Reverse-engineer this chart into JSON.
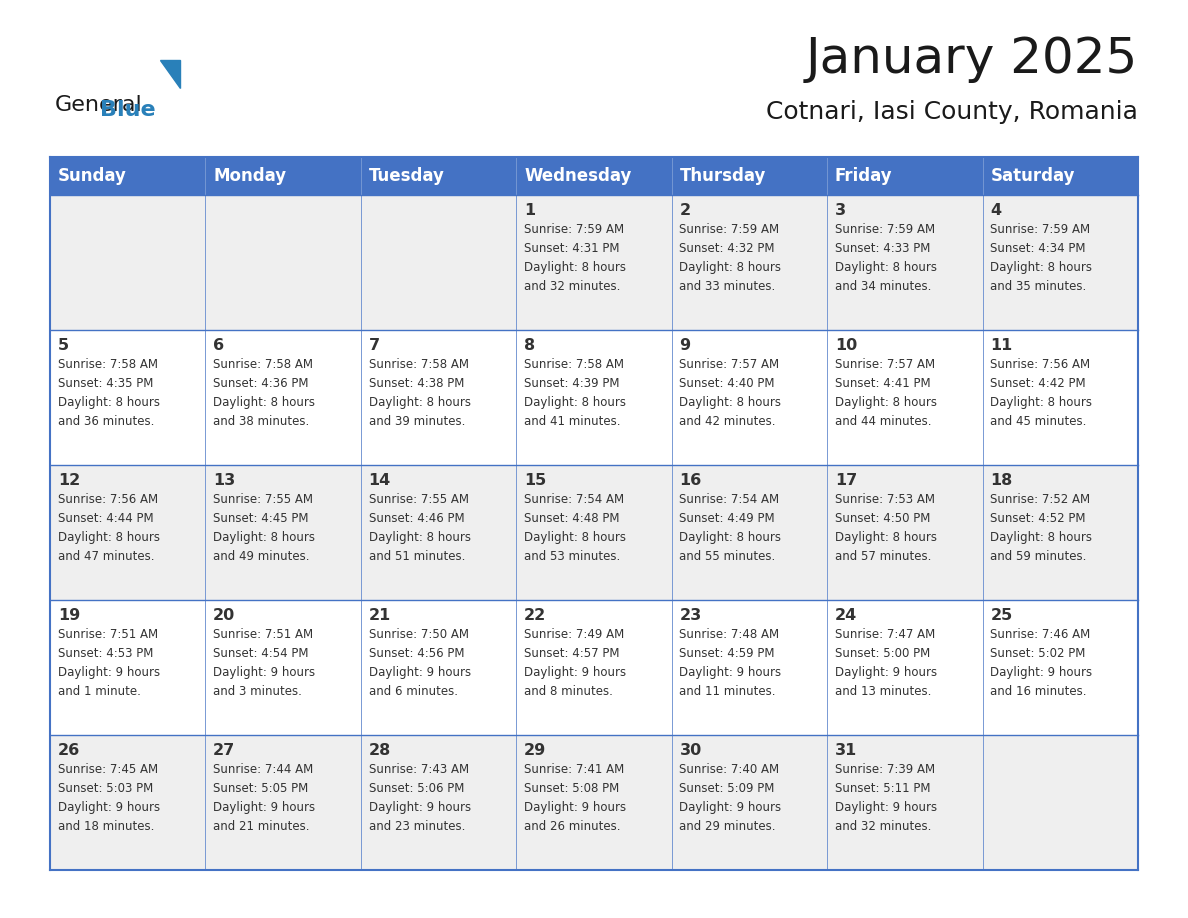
{
  "title": "January 2025",
  "subtitle": "Cotnari, Iasi County, Romania",
  "header_bg": "#4472c4",
  "header_text_color": "#ffffff",
  "cell_bg_even": "#efefef",
  "cell_bg_odd": "#ffffff",
  "border_color": "#4472c4",
  "text_color": "#333333",
  "days_of_week": [
    "Sunday",
    "Monday",
    "Tuesday",
    "Wednesday",
    "Thursday",
    "Friday",
    "Saturday"
  ],
  "weeks": [
    [
      {
        "date": "",
        "sunrise": "",
        "sunset": "",
        "daylight": ""
      },
      {
        "date": "",
        "sunrise": "",
        "sunset": "",
        "daylight": ""
      },
      {
        "date": "",
        "sunrise": "",
        "sunset": "",
        "daylight": ""
      },
      {
        "date": "1",
        "sunrise": "7:59 AM",
        "sunset": "4:31 PM",
        "daylight": "8 hours and 32 minutes."
      },
      {
        "date": "2",
        "sunrise": "7:59 AM",
        "sunset": "4:32 PM",
        "daylight": "8 hours and 33 minutes."
      },
      {
        "date": "3",
        "sunrise": "7:59 AM",
        "sunset": "4:33 PM",
        "daylight": "8 hours and 34 minutes."
      },
      {
        "date": "4",
        "sunrise": "7:59 AM",
        "sunset": "4:34 PM",
        "daylight": "8 hours and 35 minutes."
      }
    ],
    [
      {
        "date": "5",
        "sunrise": "7:58 AM",
        "sunset": "4:35 PM",
        "daylight": "8 hours and 36 minutes."
      },
      {
        "date": "6",
        "sunrise": "7:58 AM",
        "sunset": "4:36 PM",
        "daylight": "8 hours and 38 minutes."
      },
      {
        "date": "7",
        "sunrise": "7:58 AM",
        "sunset": "4:38 PM",
        "daylight": "8 hours and 39 minutes."
      },
      {
        "date": "8",
        "sunrise": "7:58 AM",
        "sunset": "4:39 PM",
        "daylight": "8 hours and 41 minutes."
      },
      {
        "date": "9",
        "sunrise": "7:57 AM",
        "sunset": "4:40 PM",
        "daylight": "8 hours and 42 minutes."
      },
      {
        "date": "10",
        "sunrise": "7:57 AM",
        "sunset": "4:41 PM",
        "daylight": "8 hours and 44 minutes."
      },
      {
        "date": "11",
        "sunrise": "7:56 AM",
        "sunset": "4:42 PM",
        "daylight": "8 hours and 45 minutes."
      }
    ],
    [
      {
        "date": "12",
        "sunrise": "7:56 AM",
        "sunset": "4:44 PM",
        "daylight": "8 hours and 47 minutes."
      },
      {
        "date": "13",
        "sunrise": "7:55 AM",
        "sunset": "4:45 PM",
        "daylight": "8 hours and 49 minutes."
      },
      {
        "date": "14",
        "sunrise": "7:55 AM",
        "sunset": "4:46 PM",
        "daylight": "8 hours and 51 minutes."
      },
      {
        "date": "15",
        "sunrise": "7:54 AM",
        "sunset": "4:48 PM",
        "daylight": "8 hours and 53 minutes."
      },
      {
        "date": "16",
        "sunrise": "7:54 AM",
        "sunset": "4:49 PM",
        "daylight": "8 hours and 55 minutes."
      },
      {
        "date": "17",
        "sunrise": "7:53 AM",
        "sunset": "4:50 PM",
        "daylight": "8 hours and 57 minutes."
      },
      {
        "date": "18",
        "sunrise": "7:52 AM",
        "sunset": "4:52 PM",
        "daylight": "8 hours and 59 minutes."
      }
    ],
    [
      {
        "date": "19",
        "sunrise": "7:51 AM",
        "sunset": "4:53 PM",
        "daylight": "9 hours and 1 minute."
      },
      {
        "date": "20",
        "sunrise": "7:51 AM",
        "sunset": "4:54 PM",
        "daylight": "9 hours and 3 minutes."
      },
      {
        "date": "21",
        "sunrise": "7:50 AM",
        "sunset": "4:56 PM",
        "daylight": "9 hours and 6 minutes."
      },
      {
        "date": "22",
        "sunrise": "7:49 AM",
        "sunset": "4:57 PM",
        "daylight": "9 hours and 8 minutes."
      },
      {
        "date": "23",
        "sunrise": "7:48 AM",
        "sunset": "4:59 PM",
        "daylight": "9 hours and 11 minutes."
      },
      {
        "date": "24",
        "sunrise": "7:47 AM",
        "sunset": "5:00 PM",
        "daylight": "9 hours and 13 minutes."
      },
      {
        "date": "25",
        "sunrise": "7:46 AM",
        "sunset": "5:02 PM",
        "daylight": "9 hours and 16 minutes."
      }
    ],
    [
      {
        "date": "26",
        "sunrise": "7:45 AM",
        "sunset": "5:03 PM",
        "daylight": "9 hours and 18 minutes."
      },
      {
        "date": "27",
        "sunrise": "7:44 AM",
        "sunset": "5:05 PM",
        "daylight": "9 hours and 21 minutes."
      },
      {
        "date": "28",
        "sunrise": "7:43 AM",
        "sunset": "5:06 PM",
        "daylight": "9 hours and 23 minutes."
      },
      {
        "date": "29",
        "sunrise": "7:41 AM",
        "sunset": "5:08 PM",
        "daylight": "9 hours and 26 minutes."
      },
      {
        "date": "30",
        "sunrise": "7:40 AM",
        "sunset": "5:09 PM",
        "daylight": "9 hours and 29 minutes."
      },
      {
        "date": "31",
        "sunrise": "7:39 AM",
        "sunset": "5:11 PM",
        "daylight": "9 hours and 32 minutes."
      },
      {
        "date": "",
        "sunrise": "",
        "sunset": "",
        "daylight": ""
      }
    ]
  ],
  "logo_text1": "General",
  "logo_text2": "Blue",
  "logo_color1": "#1a1a1a",
  "logo_color2": "#2980b9",
  "logo_triangle_color": "#2980b9"
}
